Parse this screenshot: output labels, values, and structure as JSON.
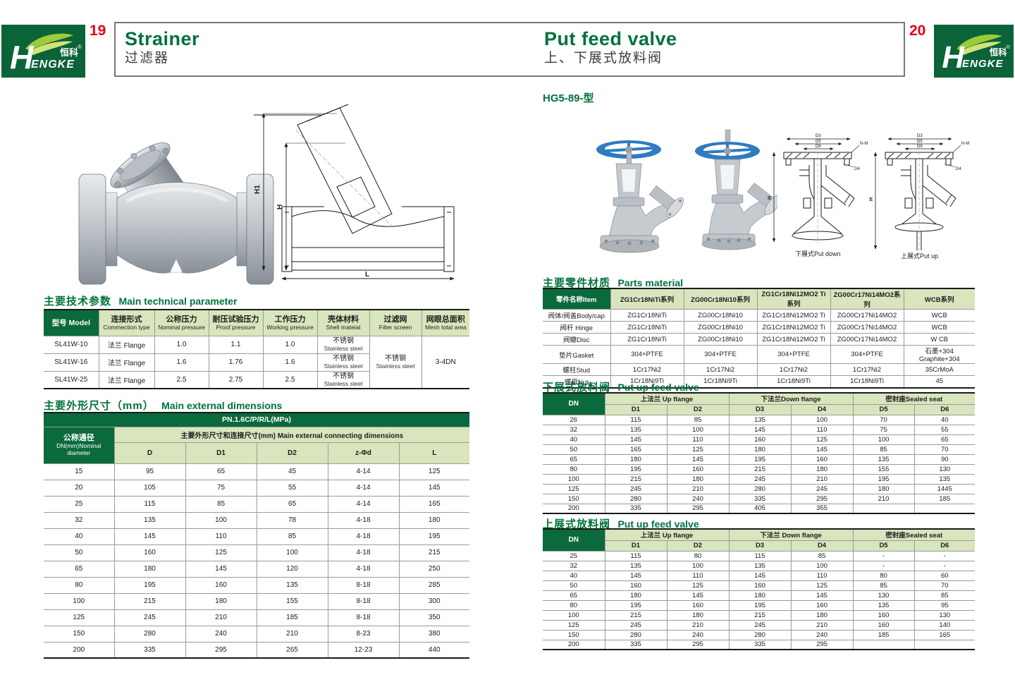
{
  "brand": {
    "cn": "恒科",
    "reg": "®",
    "h": "H",
    "rest": "ENGKE"
  },
  "header": {
    "left_page_number": "19",
    "right_page_number": "20",
    "left_title_en": "Strainer",
    "left_title_cn": "过滤器",
    "right_title_en": "Put feed valve",
    "right_title_cn": "上、下展式放料阀",
    "model_label": "HG5-89-型"
  },
  "colors": {
    "dark_green": "#0b6a3c",
    "light_green": "#d8e5bd",
    "title_green": "#00713c",
    "page_red": "#e60016",
    "wheel_blue": "#2e7bc0"
  },
  "left_page": {
    "tech_table": {
      "title_cn": "主要技术参数",
      "title_en": "Main technical parameter",
      "model_header": "型号 Model",
      "headers": [
        {
          "cn": "连接形式",
          "en": "Commection type"
        },
        {
          "cn": "公称压力",
          "en": "Nominal pressure"
        },
        {
          "cn": "耐压试验压力",
          "en": "Proof pressure"
        },
        {
          "cn": "工作压力",
          "en": "Working pressure"
        },
        {
          "cn": "壳体材料",
          "en": "Shell mateial"
        },
        {
          "cn": "过滤网",
          "en": "Filter screen"
        },
        {
          "cn": "网眼总面积",
          "en": "Mesh total area"
        }
      ],
      "rows": [
        {
          "model": "SL41W-10",
          "connection": "法兰 Flange",
          "nominal": "1.0",
          "proof": "1.1",
          "working": "1.0",
          "shell_cn": "不锈钢",
          "shell_en": "Stainless steel"
        },
        {
          "model": "SL41W-16",
          "connection": "法兰 Flange",
          "nominal": "1.6",
          "proof": "1.76",
          "working": "1.6",
          "shell_cn": "不锈钢",
          "shell_en": "Stainless steel"
        },
        {
          "model": "SL41W-25",
          "connection": "法兰 Flange",
          "nominal": "2.5",
          "proof": "2.75",
          "working": "2.5",
          "shell_cn": "不锈钢",
          "shell_en": "Stainless steel"
        }
      ],
      "filter_cn": "不锈钢",
      "filter_en": "Stainless steel",
      "mesh": "3-4DN"
    },
    "dim_table": {
      "title_cn": "主要外形尺寸（mm）",
      "title_en": "Main external dimensions",
      "pn_header": "PN.1.6C/P/R/L(MPa)",
      "dn_line1": "公称通径",
      "dn_line2": "DN(mm)Nominal",
      "dn_line3": "diameter",
      "group_header": "主要外形尺寸和连接尺寸(mm) Main external connecting dimensions",
      "columns": [
        "D",
        "D1",
        "D2",
        "z-Φd",
        "L"
      ],
      "rows": [
        [
          "15",
          "95",
          "65",
          "45",
          "4-14",
          "125"
        ],
        [
          "20",
          "105",
          "75",
          "55",
          "4-14",
          "145"
        ],
        [
          "25",
          "115",
          "85",
          "65",
          "4-14",
          "165"
        ],
        [
          "32",
          "135",
          "100",
          "78",
          "4-18",
          "180"
        ],
        [
          "40",
          "145",
          "110",
          "85",
          "4-18",
          "195"
        ],
        [
          "50",
          "160",
          "125",
          "100",
          "4-18",
          "215"
        ],
        [
          "65",
          "180",
          "145",
          "120",
          "4-18",
          "250"
        ],
        [
          "80",
          "195",
          "160",
          "135",
          "8-18",
          "285"
        ],
        [
          "100",
          "215",
          "180",
          "155",
          "8-18",
          "300"
        ],
        [
          "125",
          "245",
          "210",
          "185",
          "8-18",
          "350"
        ],
        [
          "150",
          "280",
          "240",
          "210",
          "8-23",
          "380"
        ],
        [
          "200",
          "335",
          "295",
          "265",
          "12-23",
          "440"
        ]
      ]
    },
    "drawing_labels": {
      "h1": "H1",
      "h": "H",
      "l": "L"
    }
  },
  "right_page": {
    "parts_table": {
      "title_cn": "主要零件材质",
      "title_en": "Parts material",
      "item_header": "零件名称Item",
      "series_headers": [
        "ZG1Cr18NiTi系列",
        "ZG00Cr18Ni10系列",
        "ZG1Cr18Ni12MO2 Ti系列",
        "ZG00Cr17Ni14MO2系列",
        "WCB系列"
      ],
      "rows": [
        [
          "阀体/阀盖Body/cap",
          "ZG1Cr18NiTi",
          "ZG00Cr18Ni10",
          "ZG1Cr18Ni12MO2 Ti",
          "ZG00Cr17Ni14MO2",
          "WCB"
        ],
        [
          "阀杆 Hinge",
          "ZG1Cr18NiTi",
          "ZG00Cr18Ni10",
          "ZG1Cr18Ni12MO2 Ti",
          "ZG00Cr17Ni14MO2",
          "WCB"
        ],
        [
          "阀瓣Disc",
          "ZG1Cr18NiTi",
          "ZG00Cr18Ni10",
          "ZG1Cr18Ni12MO2 Ti",
          "ZG00Cr17Ni14MO2",
          "W CB"
        ],
        [
          "垫片Gasket",
          "304+PTFE",
          "304+PTFE",
          "304+PTFE",
          "304+PTFE",
          "石墨+304 Graphite+304"
        ],
        [
          "螺柱Stud",
          "1Cr17Ni2",
          "1Cr17Ni2",
          "1Cr17Ni2",
          "1Cr17Ni2",
          "35CrMoA"
        ],
        [
          "螺母Nut",
          "1Cr18Ni9Ti",
          "1Cr18Ni9Ti",
          "1Cr18Ni9Ti",
          "1Cr18Ni9Ti",
          "45"
        ]
      ]
    },
    "down_table": {
      "title_cn": "下展式放料阀",
      "title_en": "Put up feed valve",
      "dn_header": "DN",
      "groups": [
        "上法兰 Up flange",
        "下法兰Down flange",
        "密封座Sealed seat"
      ],
      "sub_columns": [
        "D1",
        "D2",
        "D3",
        "D4",
        "D5",
        "D6"
      ],
      "rows": [
        [
          "26",
          "115",
          "85",
          "135",
          "100",
          "70",
          "40"
        ],
        [
          "32",
          "135",
          "100",
          "145",
          "110",
          "75",
          "55"
        ],
        [
          "40",
          "145",
          "110",
          "160",
          "125",
          "100",
          "65"
        ],
        [
          "50",
          "165",
          "125",
          "180",
          "145",
          "85",
          "70"
        ],
        [
          "65",
          "180",
          "145",
          "195",
          "160",
          "135",
          "90"
        ],
        [
          "80",
          "195",
          "160",
          "215",
          "180",
          "155",
          "130"
        ],
        [
          "100",
          "215",
          "180",
          "245",
          "210",
          "195",
          "135"
        ],
        [
          "125",
          "245",
          "210",
          "280",
          "245",
          "180",
          "1445"
        ],
        [
          "150",
          "280",
          "240",
          "335",
          "295",
          "210",
          "185"
        ],
        [
          "200",
          "335",
          "295",
          "405",
          "355",
          "",
          ""
        ]
      ]
    },
    "up_table": {
      "title_cn": "上展式放料阀",
      "title_en": "Put up feed valve",
      "dn_header": "DN",
      "groups": [
        "上法兰 Up flange",
        "下法兰 Down flange",
        "密封座Sealed seat"
      ],
      "sub_columns": [
        "D1",
        "D2",
        "D3",
        "D4",
        "D5",
        "D6"
      ],
      "rows": [
        [
          "25",
          "115",
          "80",
          "115",
          "85",
          "-",
          "-"
        ],
        [
          "32",
          "135",
          "100",
          "135",
          "100",
          "-",
          "-"
        ],
        [
          "40",
          "145",
          "110",
          "145",
          "110",
          "80",
          "60"
        ],
        [
          "50",
          "160",
          "125",
          "160",
          "125",
          "85",
          "70"
        ],
        [
          "65",
          "180",
          "145",
          "180",
          "145",
          "130",
          "85"
        ],
        [
          "80",
          "195",
          "160",
          "195",
          "160",
          "135",
          "95"
        ],
        [
          "100",
          "215",
          "180",
          "215",
          "180",
          "160",
          "130"
        ],
        [
          "125",
          "245",
          "210",
          "245",
          "210",
          "160",
          "140"
        ],
        [
          "150",
          "280",
          "240",
          "280",
          "240",
          "185",
          "165"
        ],
        [
          "200",
          "335",
          "295",
          "335",
          "295",
          "",
          ""
        ]
      ]
    },
    "drawing_captions": {
      "down": "下展式Put down",
      "up": "上展式Put up"
    },
    "drawing_labels": {
      "d3": "D3",
      "d5": "D5",
      "d6": "D6",
      "nm": "N-M",
      "d4": "D4",
      "h": "H"
    }
  }
}
